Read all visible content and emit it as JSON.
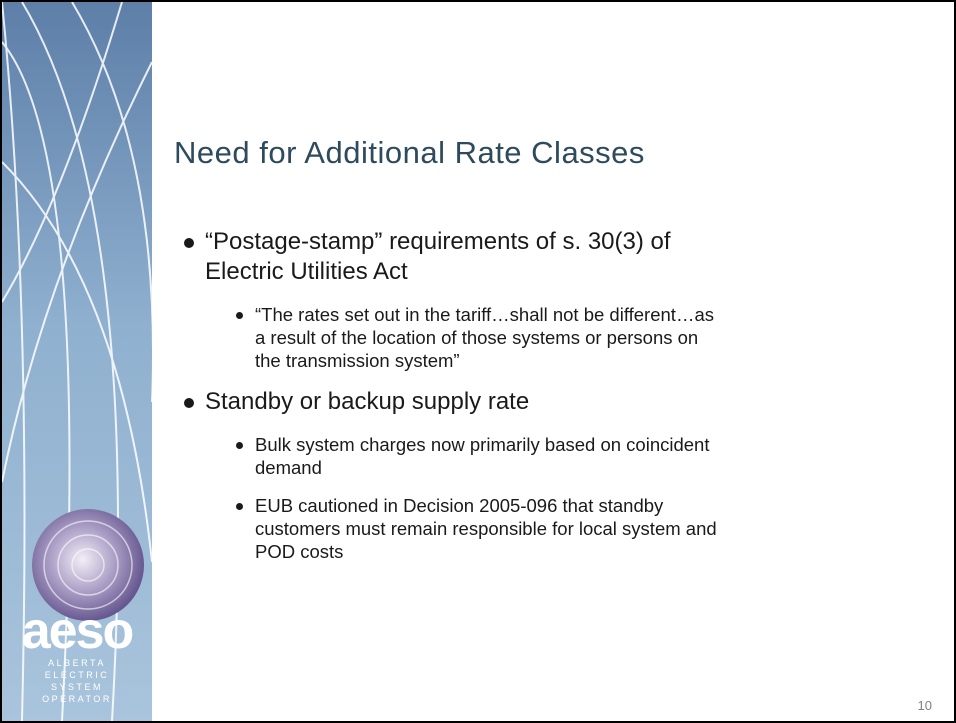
{
  "slide": {
    "title": "Need for Additional Rate Classes",
    "bullets": [
      {
        "lines": [
          "“Postage-stamp” requirements of s. 30(3) of",
          "Electric Utilities Act"
        ],
        "subs": [
          {
            "lines": [
              "“The rates set out in the tariff…shall not be different…as",
              "a result of the location of those systems or persons on",
              "the transmission system”"
            ]
          }
        ]
      },
      {
        "lines": [
          "Standby or backup supply rate"
        ],
        "subs": [
          {
            "lines": [
              "Bulk system charges now primarily based on coincident",
              "demand"
            ]
          },
          {
            "lines": [
              "EUB cautioned in Decision 2005-096 that standby",
              "customers must remain responsible for local system and",
              "POD costs"
            ]
          }
        ]
      }
    ],
    "page_number": "10"
  },
  "logo": {
    "name": "aeso",
    "tagline": [
      "ALBERTA",
      "ELECTRIC",
      "SYSTEM",
      "OPERATOR"
    ]
  }
}
